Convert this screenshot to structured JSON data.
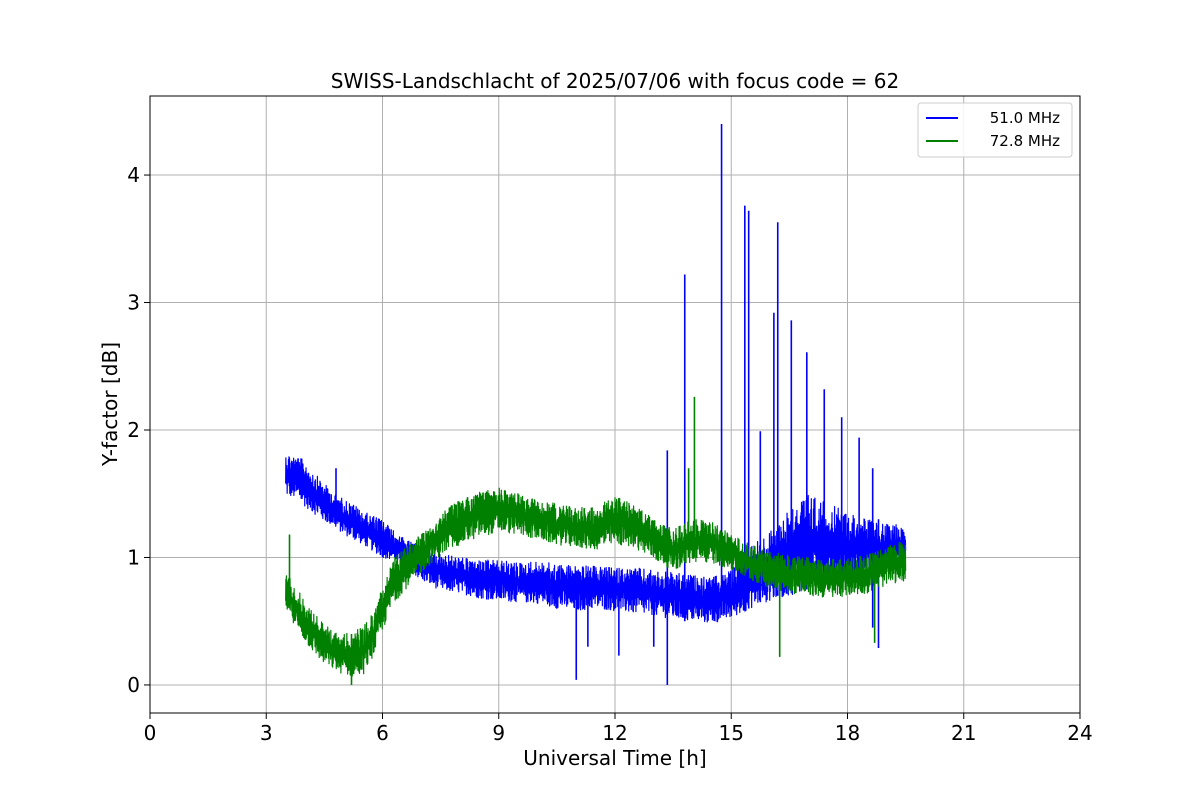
{
  "chart_data": {
    "type": "line",
    "title": "SWISS-Landschlacht of 2025/07/06 with focus code = 62",
    "xlabel": "Universal Time [h]",
    "ylabel": "Y-factor [dB]",
    "xlim": [
      0,
      24
    ],
    "ylim": [
      -0.22,
      4.62
    ],
    "xticks": [
      0,
      3,
      6,
      9,
      12,
      15,
      18,
      21,
      24
    ],
    "yticks": [
      0,
      1,
      2,
      3,
      4
    ],
    "grid": true,
    "legend_position": "top-right",
    "series": [
      {
        "name": "51.0 MHz",
        "color": "#0000ff",
        "points": [
          {
            "x": 3.5,
            "y_min": 1.48,
            "y_max": 1.83
          },
          {
            "x": 3.75,
            "y_min": 1.46,
            "y_max": 1.8
          },
          {
            "x": 4.0,
            "y_min": 1.4,
            "y_max": 1.76
          },
          {
            "x": 4.25,
            "y_min": 1.34,
            "y_max": 1.66
          },
          {
            "x": 4.5,
            "y_min": 1.28,
            "y_max": 1.58
          },
          {
            "x": 4.75,
            "y_min": 1.24,
            "y_max": 1.5
          },
          {
            "x": 5.0,
            "y_min": 1.18,
            "y_max": 1.46
          },
          {
            "x": 5.25,
            "y_min": 1.14,
            "y_max": 1.42
          },
          {
            "x": 5.5,
            "y_min": 1.1,
            "y_max": 1.36
          },
          {
            "x": 5.75,
            "y_min": 1.05,
            "y_max": 1.33
          },
          {
            "x": 6.0,
            "y_min": 1.0,
            "y_max": 1.3
          },
          {
            "x": 6.25,
            "y_min": 0.98,
            "y_max": 1.22
          },
          {
            "x": 6.5,
            "y_min": 0.92,
            "y_max": 1.16
          },
          {
            "x": 6.75,
            "y_min": 0.88,
            "y_max": 1.12
          },
          {
            "x": 7.0,
            "y_min": 0.82,
            "y_max": 1.06
          },
          {
            "x": 7.5,
            "y_min": 0.74,
            "y_max": 1.04
          },
          {
            "x": 8.0,
            "y_min": 0.72,
            "y_max": 1.0
          },
          {
            "x": 8.5,
            "y_min": 0.68,
            "y_max": 0.98
          },
          {
            "x": 9.0,
            "y_min": 0.66,
            "y_max": 0.98
          },
          {
            "x": 9.5,
            "y_min": 0.65,
            "y_max": 0.96
          },
          {
            "x": 10.0,
            "y_min": 0.64,
            "y_max": 0.97
          },
          {
            "x": 10.5,
            "y_min": 0.6,
            "y_max": 0.95
          },
          {
            "x": 11.0,
            "y_min": 0.58,
            "y_max": 0.94
          },
          {
            "x": 11.5,
            "y_min": 0.6,
            "y_max": 0.93
          },
          {
            "x": 12.0,
            "y_min": 0.58,
            "y_max": 0.92
          },
          {
            "x": 12.5,
            "y_min": 0.56,
            "y_max": 0.92
          },
          {
            "x": 13.0,
            "y_min": 0.54,
            "y_max": 0.9
          },
          {
            "x": 13.5,
            "y_min": 0.52,
            "y_max": 0.88
          },
          {
            "x": 14.0,
            "y_min": 0.5,
            "y_max": 0.86
          },
          {
            "x": 14.5,
            "y_min": 0.48,
            "y_max": 0.84
          },
          {
            "x": 15.0,
            "y_min": 0.52,
            "y_max": 0.9
          },
          {
            "x": 15.5,
            "y_min": 0.6,
            "y_max": 1.1
          },
          {
            "x": 16.0,
            "y_min": 0.66,
            "y_max": 1.2
          },
          {
            "x": 16.5,
            "y_min": 0.7,
            "y_max": 1.4
          },
          {
            "x": 17.0,
            "y_min": 0.76,
            "y_max": 1.5
          },
          {
            "x": 17.5,
            "y_min": 0.8,
            "y_max": 1.42
          },
          {
            "x": 18.0,
            "y_min": 0.82,
            "y_max": 1.36
          },
          {
            "x": 18.5,
            "y_min": 0.84,
            "y_max": 1.3
          },
          {
            "x": 19.0,
            "y_min": 0.88,
            "y_max": 1.26
          },
          {
            "x": 19.5,
            "y_min": 0.92,
            "y_max": 1.28
          }
        ],
        "spikes": [
          {
            "x": 4.8,
            "y_min": 1.26,
            "y_max": 1.7
          },
          {
            "x": 11.0,
            "y_min": 0.04,
            "y_max": 0.8
          },
          {
            "x": 11.3,
            "y_min": 0.3,
            "y_max": 0.8
          },
          {
            "x": 12.1,
            "y_min": 0.23,
            "y_max": 0.8
          },
          {
            "x": 13.0,
            "y_min": 0.3,
            "y_max": 0.8
          },
          {
            "x": 13.35,
            "y_min": 0.0,
            "y_max": 1.84
          },
          {
            "x": 13.8,
            "y_min": 0.5,
            "y_max": 3.22
          },
          {
            "x": 14.75,
            "y_min": 0.55,
            "y_max": 4.4
          },
          {
            "x": 15.35,
            "y_min": 0.6,
            "y_max": 3.76
          },
          {
            "x": 15.45,
            "y_min": 0.6,
            "y_max": 3.72
          },
          {
            "x": 15.75,
            "y_min": 0.65,
            "y_max": 1.99
          },
          {
            "x": 16.1,
            "y_min": 0.7,
            "y_max": 2.92
          },
          {
            "x": 16.2,
            "y_min": 0.7,
            "y_max": 3.63
          },
          {
            "x": 16.55,
            "y_min": 0.72,
            "y_max": 2.86
          },
          {
            "x": 16.95,
            "y_min": 0.75,
            "y_max": 2.61
          },
          {
            "x": 17.4,
            "y_min": 0.8,
            "y_max": 2.32
          },
          {
            "x": 17.85,
            "y_min": 0.82,
            "y_max": 2.1
          },
          {
            "x": 18.3,
            "y_min": 0.85,
            "y_max": 1.94
          },
          {
            "x": 18.65,
            "y_min": 0.45,
            "y_max": 1.7
          },
          {
            "x": 18.8,
            "y_min": 0.29,
            "y_max": 1.3
          }
        ]
      },
      {
        "name": "72.8 MHz",
        "color": "#008000",
        "points": [
          {
            "x": 3.5,
            "y_min": 0.6,
            "y_max": 0.9
          },
          {
            "x": 3.75,
            "y_min": 0.46,
            "y_max": 0.78
          },
          {
            "x": 4.0,
            "y_min": 0.34,
            "y_max": 0.66
          },
          {
            "x": 4.25,
            "y_min": 0.24,
            "y_max": 0.56
          },
          {
            "x": 4.5,
            "y_min": 0.16,
            "y_max": 0.48
          },
          {
            "x": 4.75,
            "y_min": 0.12,
            "y_max": 0.42
          },
          {
            "x": 5.0,
            "y_min": 0.08,
            "y_max": 0.4
          },
          {
            "x": 5.25,
            "y_min": 0.06,
            "y_max": 0.42
          },
          {
            "x": 5.5,
            "y_min": 0.08,
            "y_max": 0.46
          },
          {
            "x": 5.75,
            "y_min": 0.22,
            "y_max": 0.56
          },
          {
            "x": 6.0,
            "y_min": 0.42,
            "y_max": 0.78
          },
          {
            "x": 6.25,
            "y_min": 0.62,
            "y_max": 0.98
          },
          {
            "x": 6.5,
            "y_min": 0.72,
            "y_max": 1.06
          },
          {
            "x": 6.75,
            "y_min": 0.8,
            "y_max": 1.12
          },
          {
            "x": 7.0,
            "y_min": 0.88,
            "y_max": 1.2
          },
          {
            "x": 7.5,
            "y_min": 1.02,
            "y_max": 1.34
          },
          {
            "x": 8.0,
            "y_min": 1.1,
            "y_max": 1.46
          },
          {
            "x": 8.5,
            "y_min": 1.16,
            "y_max": 1.52
          },
          {
            "x": 9.0,
            "y_min": 1.2,
            "y_max": 1.55
          },
          {
            "x": 9.5,
            "y_min": 1.18,
            "y_max": 1.5
          },
          {
            "x": 10.0,
            "y_min": 1.14,
            "y_max": 1.46
          },
          {
            "x": 10.5,
            "y_min": 1.1,
            "y_max": 1.42
          },
          {
            "x": 11.0,
            "y_min": 1.08,
            "y_max": 1.4
          },
          {
            "x": 11.5,
            "y_min": 1.06,
            "y_max": 1.4
          },
          {
            "x": 12.0,
            "y_min": 1.1,
            "y_max": 1.48
          },
          {
            "x": 12.5,
            "y_min": 1.08,
            "y_max": 1.42
          },
          {
            "x": 13.0,
            "y_min": 0.98,
            "y_max": 1.3
          },
          {
            "x": 13.5,
            "y_min": 0.9,
            "y_max": 1.22
          },
          {
            "x": 14.0,
            "y_min": 0.96,
            "y_max": 1.3
          },
          {
            "x": 14.5,
            "y_min": 0.96,
            "y_max": 1.28
          },
          {
            "x": 15.0,
            "y_min": 0.9,
            "y_max": 1.18
          },
          {
            "x": 15.5,
            "y_min": 0.82,
            "y_max": 1.1
          },
          {
            "x": 16.0,
            "y_min": 0.76,
            "y_max": 1.04
          },
          {
            "x": 16.5,
            "y_min": 0.72,
            "y_max": 1.02
          },
          {
            "x": 17.0,
            "y_min": 0.7,
            "y_max": 1.0
          },
          {
            "x": 17.5,
            "y_min": 0.68,
            "y_max": 0.98
          },
          {
            "x": 18.0,
            "y_min": 0.7,
            "y_max": 1.0
          },
          {
            "x": 18.5,
            "y_min": 0.72,
            "y_max": 1.02
          },
          {
            "x": 19.0,
            "y_min": 0.78,
            "y_max": 1.08
          },
          {
            "x": 19.5,
            "y_min": 0.82,
            "y_max": 1.14
          }
        ],
        "spikes": [
          {
            "x": 3.6,
            "y_min": 0.6,
            "y_max": 1.18
          },
          {
            "x": 5.2,
            "y_min": 0.0,
            "y_max": 0.4
          },
          {
            "x": 14.05,
            "y_min": 1.0,
            "y_max": 2.26
          },
          {
            "x": 16.25,
            "y_min": 0.22,
            "y_max": 0.9
          },
          {
            "x": 18.7,
            "y_min": 0.33,
            "y_max": 0.95
          },
          {
            "x": 13.9,
            "y_min": 1.0,
            "y_max": 1.7
          }
        ]
      }
    ]
  }
}
